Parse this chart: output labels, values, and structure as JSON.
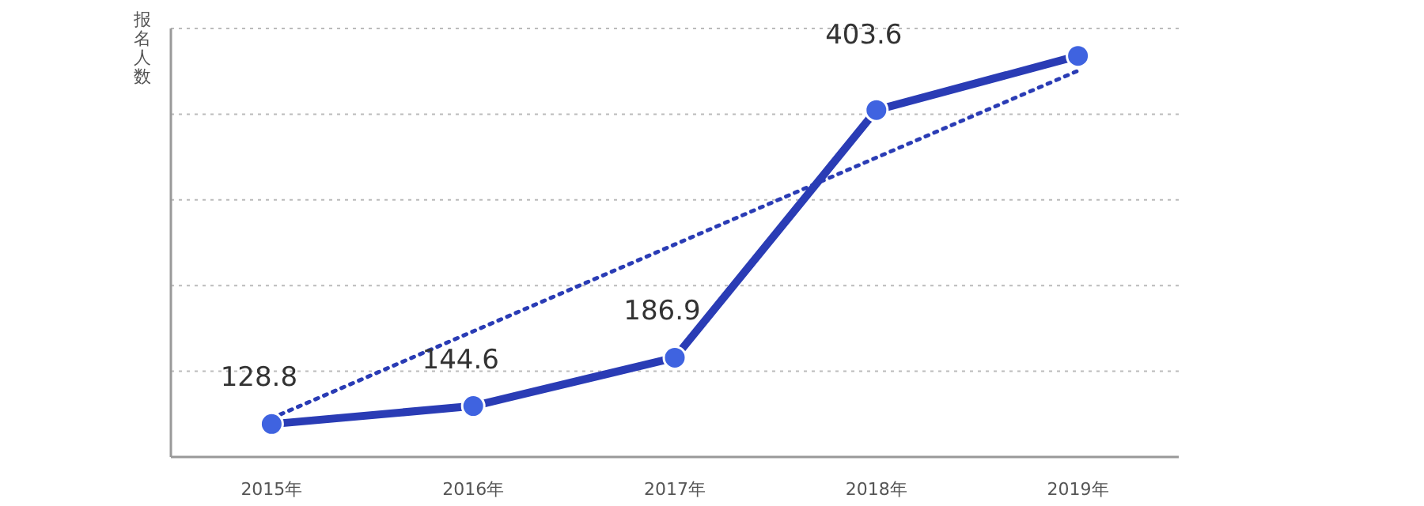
{
  "chart_data": {
    "type": "line",
    "ylabel": "报名人数",
    "categories": [
      "2015年",
      "2016年",
      "2017年",
      "2018年",
      "2019年"
    ],
    "series": [
      {
        "color": "#2a3cb5",
        "values": [
          128.8,
          144.6,
          186.9,
          403.6,
          451
        ],
        "value_labels": [
          "128.8",
          "144.6",
          "186.9",
          "403.6",
          null
        ],
        "marker": "circle",
        "line_style": "solid"
      },
      {
        "color": "#2a3cb5",
        "values": [
          134,
          210,
          286,
          362,
          438
        ],
        "marker": "none",
        "line_style": "dotted"
      }
    ],
    "ylim": [
      100,
      475
    ],
    "yticks": [
      {
        "value": 100,
        "label": null
      },
      {
        "value": 175,
        "label": null
      },
      {
        "value": 250,
        "label": null
      },
      {
        "value": 325,
        "label": null
      },
      {
        "value": 400,
        "label": null
      },
      {
        "value": 475,
        "label": null
      }
    ],
    "grid": "y",
    "tick_labels": "x"
  }
}
